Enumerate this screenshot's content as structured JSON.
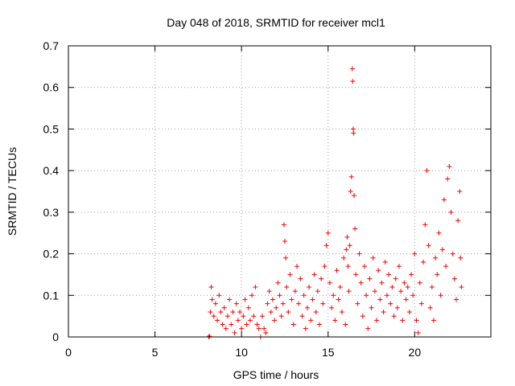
{
  "chart_data": {
    "type": "scatter",
    "title": "Day 048 of 2018, SRMTID for receiver mcl1",
    "xlabel": "GPS time / hours",
    "ylabel": "SRMTID / TECUs",
    "xlim": [
      0,
      24.4
    ],
    "ylim": [
      0,
      0.7
    ],
    "xticks": [
      0,
      5,
      10,
      15,
      20
    ],
    "yticks": [
      0,
      0.1,
      0.2,
      0.3,
      0.4,
      0.5,
      0.6,
      0.7
    ],
    "grid": true,
    "marker": "+",
    "color": "#ff0000",
    "series": [
      {
        "name": "SRMTID",
        "points": [
          [
            8.1,
            0.0
          ],
          [
            8.15,
            0.002
          ],
          [
            8.2,
            0.06
          ],
          [
            8.25,
            0.12
          ],
          [
            8.3,
            0.09
          ],
          [
            8.4,
            0.05
          ],
          [
            8.5,
            0.08
          ],
          [
            8.6,
            0.04
          ],
          [
            8.7,
            0.1
          ],
          [
            8.8,
            0.06
          ],
          [
            8.9,
            0.03
          ],
          [
            9.0,
            0.07
          ],
          [
            9.1,
            0.02
          ],
          [
            9.2,
            0.05
          ],
          [
            9.3,
            0.09
          ],
          [
            9.4,
            0.03
          ],
          [
            9.5,
            0.06
          ],
          [
            9.6,
            0.01
          ],
          [
            9.7,
            0.08
          ],
          [
            9.8,
            0.04
          ],
          [
            9.9,
            0.06
          ],
          [
            10.0,
            0.02
          ],
          [
            10.1,
            0.05
          ],
          [
            10.2,
            0.09
          ],
          [
            10.3,
            0.03
          ],
          [
            10.4,
            0.07
          ],
          [
            10.5,
            0.04
          ],
          [
            10.6,
            0.1
          ],
          [
            10.7,
            0.05
          ],
          [
            10.8,
            0.12
          ],
          [
            10.9,
            0.03
          ],
          [
            11.0,
            0.02
          ],
          [
            11.1,
            0.0
          ],
          [
            11.2,
            0.05
          ],
          [
            11.3,
            0.02
          ],
          [
            11.4,
            0.01
          ],
          [
            11.5,
            0.08
          ],
          [
            11.6,
            0.11
          ],
          [
            11.7,
            0.06
          ],
          [
            11.8,
            0.09
          ],
          [
            11.9,
            0.04
          ],
          [
            12.0,
            0.07
          ],
          [
            12.1,
            0.13
          ],
          [
            12.2,
            0.1
          ],
          [
            12.3,
            0.05
          ],
          [
            12.4,
            0.08
          ],
          [
            12.45,
            0.27
          ],
          [
            12.5,
            0.23
          ],
          [
            12.55,
            0.19
          ],
          [
            12.6,
            0.12
          ],
          [
            12.7,
            0.06
          ],
          [
            12.8,
            0.15
          ],
          [
            12.9,
            0.09
          ],
          [
            13.0,
            0.03
          ],
          [
            13.1,
            0.11
          ],
          [
            13.2,
            0.17
          ],
          [
            13.3,
            0.08
          ],
          [
            13.4,
            0.14
          ],
          [
            13.5,
            0.05
          ],
          [
            13.6,
            0.1
          ],
          [
            13.7,
            0.02
          ],
          [
            13.8,
            0.07
          ],
          [
            13.9,
            0.12
          ],
          [
            14.0,
            0.04
          ],
          [
            14.1,
            0.09
          ],
          [
            14.2,
            0.15
          ],
          [
            14.3,
            0.06
          ],
          [
            14.4,
            0.11
          ],
          [
            14.5,
            0.03
          ],
          [
            14.6,
            0.14
          ],
          [
            14.7,
            0.08
          ],
          [
            14.8,
            0.17
          ],
          [
            14.9,
            0.22
          ],
          [
            15.0,
            0.25
          ],
          [
            15.1,
            0.13
          ],
          [
            15.2,
            0.07
          ],
          [
            15.3,
            0.1
          ],
          [
            15.4,
            0.04
          ],
          [
            15.5,
            0.16
          ],
          [
            15.6,
            0.09
          ],
          [
            15.7,
            0.12
          ],
          [
            15.8,
            0.06
          ],
          [
            15.9,
            0.19
          ],
          [
            16.0,
            0.03
          ],
          [
            16.05,
            0.21
          ],
          [
            16.1,
            0.24
          ],
          [
            16.15,
            0.17
          ],
          [
            16.2,
            0.11
          ],
          [
            16.25,
            0.22
          ],
          [
            16.3,
            0.35
          ],
          [
            16.35,
            0.385
          ],
          [
            16.4,
            0.645
          ],
          [
            16.42,
            0.615
          ],
          [
            16.45,
            0.5
          ],
          [
            16.47,
            0.49
          ],
          [
            16.5,
            0.34
          ],
          [
            16.55,
            0.26
          ],
          [
            16.6,
            0.15
          ],
          [
            16.7,
            0.08
          ],
          [
            16.8,
            0.2
          ],
          [
            16.9,
            0.13
          ],
          [
            17.0,
            0.05
          ],
          [
            17.1,
            0.17
          ],
          [
            17.2,
            0.1
          ],
          [
            17.3,
            0.02
          ],
          [
            17.4,
            0.14
          ],
          [
            17.5,
            0.07
          ],
          [
            17.6,
            0.19
          ],
          [
            17.7,
            0.11
          ],
          [
            17.8,
            0.04
          ],
          [
            17.9,
            0.16
          ],
          [
            18.0,
            0.09
          ],
          [
            18.1,
            0.13
          ],
          [
            18.2,
            0.06
          ],
          [
            18.3,
            0.18
          ],
          [
            18.4,
            0.1
          ],
          [
            18.5,
            0.15
          ],
          [
            18.6,
            0.08
          ],
          [
            18.7,
            0.12
          ],
          [
            18.8,
            0.05
          ],
          [
            18.9,
            0.14
          ],
          [
            19.0,
            0.07
          ],
          [
            19.1,
            0.17
          ],
          [
            19.2,
            0.11
          ],
          [
            19.3,
            0.04
          ],
          [
            19.4,
            0.13
          ],
          [
            19.5,
            0.09
          ],
          [
            19.6,
            0.12
          ],
          [
            19.7,
            0.06
          ],
          [
            19.8,
            0.15
          ],
          [
            19.9,
            0.1
          ],
          [
            20.0,
            0.2
          ],
          [
            20.1,
            0.04
          ],
          [
            20.2,
            0.01
          ],
          [
            20.3,
            0.13
          ],
          [
            20.4,
            0.08
          ],
          [
            20.5,
            0.18
          ],
          [
            20.6,
            0.27
          ],
          [
            20.7,
            0.4
          ],
          [
            20.8,
            0.22
          ],
          [
            20.9,
            0.07
          ],
          [
            21.0,
            0.12
          ],
          [
            21.1,
            0.04
          ],
          [
            21.2,
            0.19
          ],
          [
            21.3,
            0.15
          ],
          [
            21.4,
            0.25
          ],
          [
            21.5,
            0.1
          ],
          [
            21.6,
            0.21
          ],
          [
            21.7,
            0.33
          ],
          [
            21.8,
            0.17
          ],
          [
            21.9,
            0.38
          ],
          [
            22.0,
            0.41
          ],
          [
            22.1,
            0.3
          ],
          [
            22.2,
            0.2
          ],
          [
            22.3,
            0.14
          ],
          [
            22.4,
            0.09
          ],
          [
            22.5,
            0.28
          ],
          [
            22.6,
            0.35
          ],
          [
            22.65,
            0.19
          ],
          [
            22.7,
            0.12
          ]
        ]
      }
    ]
  }
}
